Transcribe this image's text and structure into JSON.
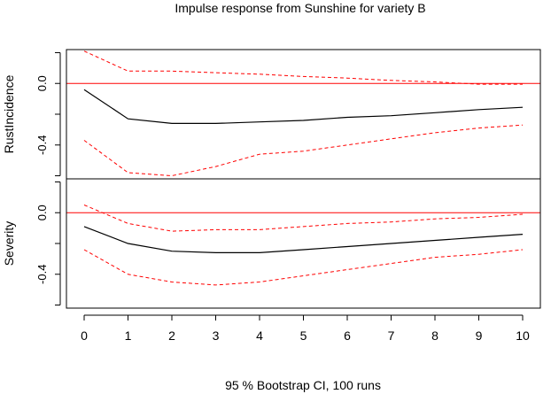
{
  "chart_data": {
    "type": "line",
    "title": "Impulse response from Sunshine for variety B",
    "footer": "95 % Bootstrap CI,  100 runs",
    "x_ticks": [
      0,
      1,
      2,
      3,
      4,
      5,
      6,
      7,
      8,
      9,
      10
    ],
    "xlim": [
      0,
      10
    ],
    "ylim": [
      -0.62,
      0.22
    ],
    "y_ticks": [
      {
        "value": 0.2,
        "label": ""
      },
      {
        "value": 0.0,
        "label": "0.0"
      },
      {
        "value": -0.2,
        "label": ""
      },
      {
        "value": -0.4,
        "label": "-0.4"
      },
      {
        "value": -0.6,
        "label": ""
      }
    ],
    "colors": {
      "response": "#000000",
      "ci": "#ff0000",
      "zero_line": "#ff0000"
    },
    "panels": [
      {
        "ylabel": "RustIncidence",
        "x": [
          0,
          1,
          2,
          3,
          4,
          5,
          6,
          7,
          8,
          9,
          10
        ],
        "response": [
          -0.04,
          -0.23,
          -0.26,
          -0.26,
          -0.25,
          -0.24,
          -0.22,
          -0.21,
          -0.19,
          -0.17,
          -0.155
        ],
        "ci_upper": [
          0.21,
          0.08,
          0.08,
          0.07,
          0.06,
          0.045,
          0.035,
          0.02,
          0.01,
          -0.005,
          -0.005
        ],
        "ci_lower": [
          -0.37,
          -0.58,
          -0.6,
          -0.54,
          -0.46,
          -0.44,
          -0.4,
          -0.36,
          -0.32,
          -0.29,
          -0.27
        ]
      },
      {
        "ylabel": "Severity",
        "x": [
          0,
          1,
          2,
          3,
          4,
          5,
          6,
          7,
          8,
          9,
          10
        ],
        "response": [
          -0.09,
          -0.2,
          -0.25,
          -0.26,
          -0.26,
          -0.24,
          -0.22,
          -0.2,
          -0.18,
          -0.16,
          -0.14
        ],
        "ci_upper": [
          0.05,
          -0.07,
          -0.12,
          -0.11,
          -0.11,
          -0.09,
          -0.07,
          -0.06,
          -0.04,
          -0.03,
          -0.01
        ],
        "ci_lower": [
          -0.24,
          -0.4,
          -0.45,
          -0.47,
          -0.45,
          -0.41,
          -0.37,
          -0.33,
          -0.29,
          -0.27,
          -0.24
        ]
      }
    ]
  }
}
